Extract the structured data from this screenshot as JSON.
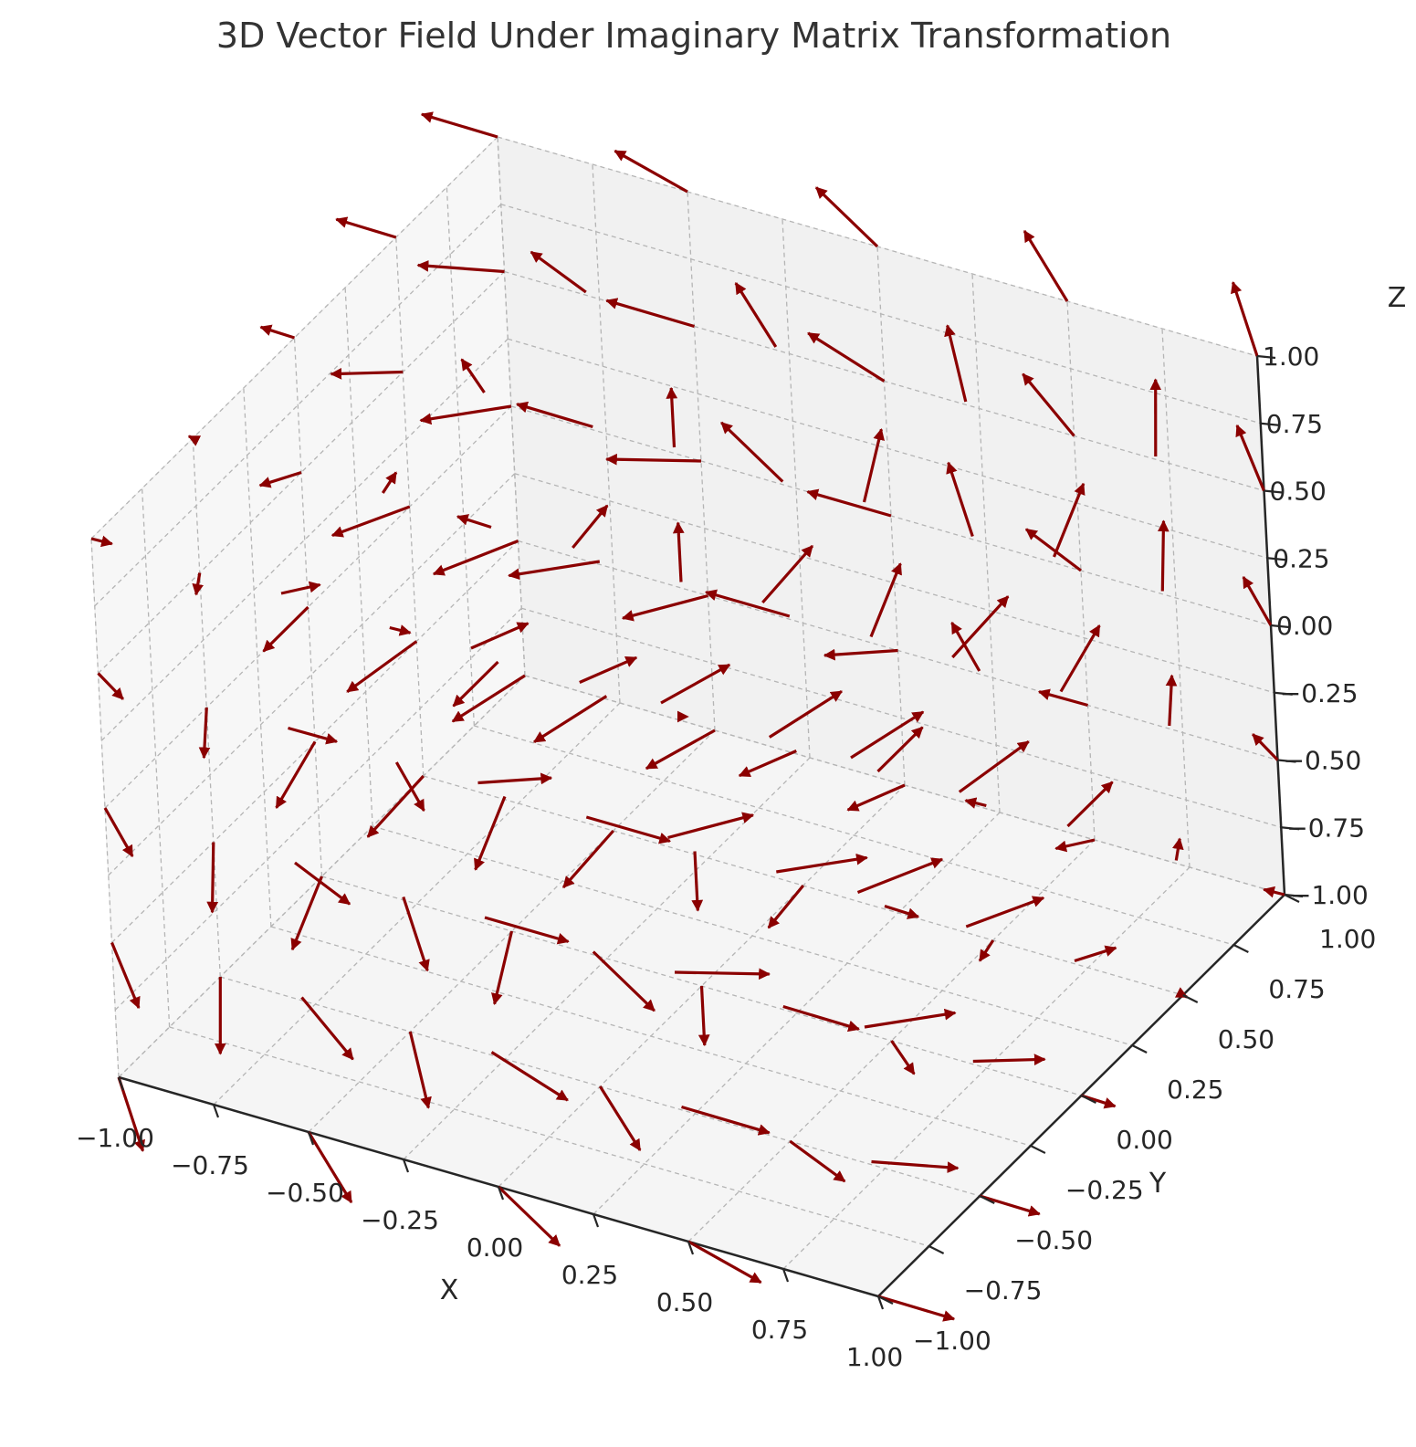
{
  "chart_data": {
    "type": "quiver3d",
    "title": "3D Vector Field Under Imaginary Matrix Transformation",
    "xlabel": "X",
    "ylabel": "Y",
    "zlabel": "Z",
    "xlim": [
      -1,
      1
    ],
    "ylim": [
      -1,
      1
    ],
    "zlim": [
      -1,
      1
    ],
    "grid": true,
    "arrow_color": "#8b0000",
    "x_ticks": [
      "−1.00",
      "−0.75",
      "−0.50",
      "−0.25",
      "0.00",
      "0.25",
      "0.50",
      "0.75",
      "1.00"
    ],
    "y_ticks": [
      "−1.00",
      "−0.75",
      "−0.50",
      "−0.25",
      "0.00",
      "0.25",
      "0.50",
      "0.75",
      "1.00"
    ],
    "z_ticks": [
      "−1.00",
      "−0.75",
      "−0.50",
      "−0.25",
      "0.00",
      "0.25",
      "0.50",
      "0.75",
      "1.00"
    ],
    "grid_points": [
      -1,
      -0.5,
      0,
      0.5,
      1
    ],
    "vector_field": {
      "u": "-y",
      "v": "x",
      "w": "z"
    }
  }
}
